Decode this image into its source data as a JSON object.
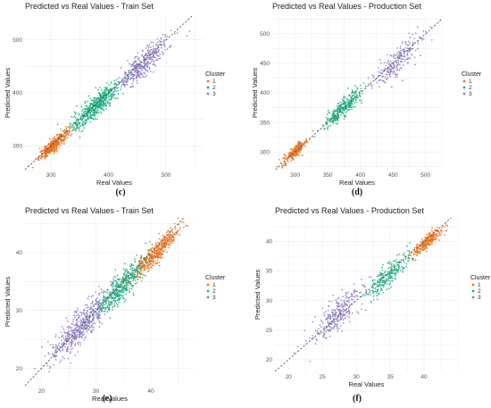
{
  "colors": {
    "1": "#e8731e",
    "2": "#1fae83",
    "3": "#8f7dc3"
  },
  "chart_data": [
    {
      "type": "scatter",
      "caption": "(c)",
      "title": "Predicted vs Real Values - Train Set",
      "xlabel": "Real Values",
      "ylabel": "Predicted Values",
      "xticks": [
        300,
        400,
        500
      ],
      "yticks": [
        300,
        400,
        500
      ],
      "xlim": [
        255,
        565
      ],
      "ylim": [
        255,
        545
      ],
      "grid": true,
      "reference_line": "y = x (dashed)",
      "legend": {
        "title": "Cluster",
        "position": "right",
        "entries": [
          "1",
          "2",
          "3"
        ]
      },
      "series": [
        {
          "name": "1",
          "center": [
            305,
            302
          ],
          "spread": [
            17,
            11
          ],
          "n": 380
        },
        {
          "name": "2",
          "center": [
            378,
            375
          ],
          "spread": [
            28,
            20
          ],
          "n": 520
        },
        {
          "name": "3",
          "center": [
            460,
            455
          ],
          "spread": [
            30,
            22
          ],
          "n": 380
        }
      ]
    },
    {
      "type": "scatter",
      "caption": "(d)",
      "title": "Predicted vs Real Values - Production Set",
      "xlabel": "Real Values",
      "ylabel": "Predicted Values",
      "xticks": [
        300,
        350,
        400,
        450,
        500
      ],
      "yticks": [
        300,
        350,
        400,
        450,
        500
      ],
      "xlim": [
        265,
        525
      ],
      "ylim": [
        270,
        530
      ],
      "grid": true,
      "reference_line": "y = x (dashed)",
      "legend": {
        "title": "Cluster",
        "position": "right",
        "entries": [
          "1",
          "2",
          "3"
        ]
      },
      "series": [
        {
          "name": "1",
          "center": [
            300,
            301
          ],
          "spread": [
            12,
            9
          ],
          "n": 230
        },
        {
          "name": "2",
          "center": [
            372,
            372
          ],
          "spread": [
            20,
            15
          ],
          "n": 300
        },
        {
          "name": "3",
          "center": [
            458,
            455
          ],
          "spread": [
            25,
            20
          ],
          "n": 230
        }
      ]
    },
    {
      "type": "scatter",
      "caption": "(e)",
      "title": "Predicted vs Real Values - Train Set",
      "xlabel": "Real Values",
      "ylabel": "Predicted Values",
      "xticks": [
        20,
        30,
        40
      ],
      "yticks": [
        20,
        30,
        40
      ],
      "xlim": [
        17,
        48
      ],
      "ylim": [
        17,
        46
      ],
      "grid": true,
      "reference_line": "y = x (dashed)",
      "legend": {
        "title": "Cluster",
        "position": "right",
        "entries": [
          "1",
          "2",
          "3"
        ]
      },
      "series": [
        {
          "name": "1",
          "center": [
            41,
            40
          ],
          "spread": [
            3,
            1.6
          ],
          "n": 450
        },
        {
          "name": "2",
          "center": [
            34,
            33.5
          ],
          "spread": [
            3,
            2.2
          ],
          "n": 450
        },
        {
          "name": "3",
          "center": [
            27,
            27
          ],
          "spread": [
            3.5,
            2.8
          ],
          "n": 500
        }
      ]
    },
    {
      "type": "scatter",
      "caption": "(f)",
      "title": "Predicted vs Real Values - Production Set",
      "xlabel": "Real Values",
      "ylabel": "Predicted Values",
      "xticks": [
        20,
        25,
        30,
        35,
        40
      ],
      "yticks": [
        20,
        25,
        30,
        35,
        40
      ],
      "xlim": [
        18,
        45
      ],
      "ylim": [
        18,
        44
      ],
      "grid": true,
      "reference_line": "y = x (dashed)",
      "legend": {
        "title": "Cluster",
        "position": "right",
        "entries": [
          "1",
          "2",
          "3"
        ]
      },
      "series": [
        {
          "name": "1",
          "center": [
            40.5,
            40
          ],
          "spread": [
            1.6,
            1.1
          ],
          "n": 250
        },
        {
          "name": "2",
          "center": [
            34.5,
            34
          ],
          "spread": [
            2.2,
            2
          ],
          "n": 250
        },
        {
          "name": "3",
          "center": [
            27,
            27.5
          ],
          "spread": [
            2.6,
            2.4
          ],
          "n": 280
        }
      ]
    }
  ]
}
